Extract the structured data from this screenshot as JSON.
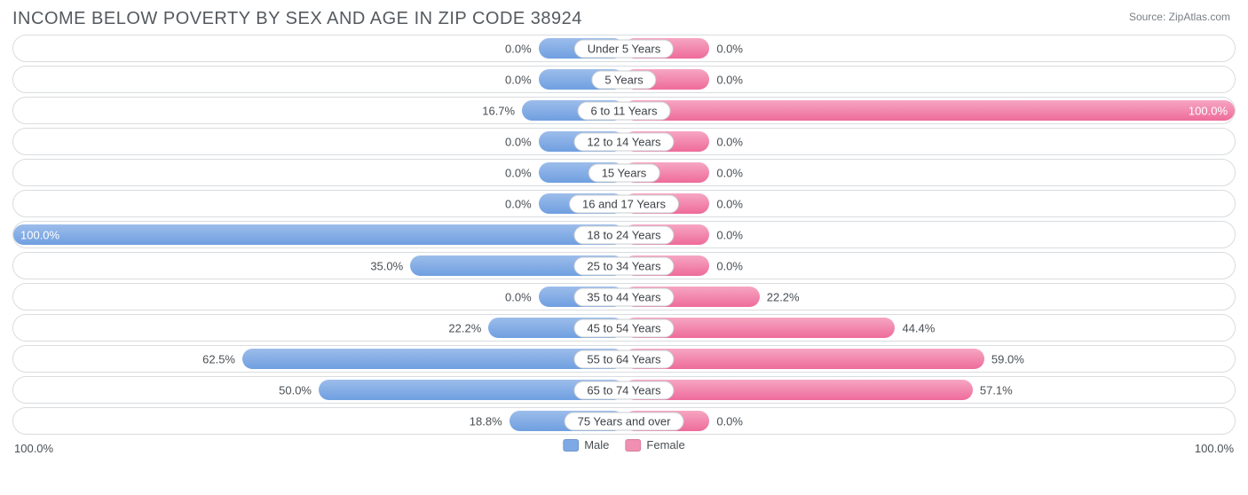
{
  "title": "INCOME BELOW POVERTY BY SEX AND AGE IN ZIP CODE 38924",
  "source": "Source: ZipAtlas.com",
  "axis_left": "100.0%",
  "axis_right": "100.0%",
  "legend": {
    "male": "Male",
    "female": "Female"
  },
  "colors": {
    "male_fill": "linear-gradient(#9cbdeb, #6f9fe0)",
    "male_solid": "#7ea9e4",
    "female_fill": "linear-gradient(#f6a6c2, #ee6b9a)",
    "female_solid": "#f08fb2",
    "track_border": "#d9dcdf",
    "text": "#4a4f54",
    "title_text": "#555a5f",
    "background": "#ffffff"
  },
  "chart": {
    "type": "diverging-bar",
    "min_bar_pct": 14,
    "categories": [
      {
        "label": "Under 5 Years",
        "male": 0.0,
        "female": 0.0
      },
      {
        "label": "5 Years",
        "male": 0.0,
        "female": 0.0
      },
      {
        "label": "6 to 11 Years",
        "male": 16.7,
        "female": 100.0
      },
      {
        "label": "12 to 14 Years",
        "male": 0.0,
        "female": 0.0
      },
      {
        "label": "15 Years",
        "male": 0.0,
        "female": 0.0
      },
      {
        "label": "16 and 17 Years",
        "male": 0.0,
        "female": 0.0
      },
      {
        "label": "18 to 24 Years",
        "male": 100.0,
        "female": 0.0
      },
      {
        "label": "25 to 34 Years",
        "male": 35.0,
        "female": 0.0
      },
      {
        "label": "35 to 44 Years",
        "male": 0.0,
        "female": 22.2
      },
      {
        "label": "45 to 54 Years",
        "male": 22.2,
        "female": 44.4
      },
      {
        "label": "55 to 64 Years",
        "male": 62.5,
        "female": 59.0
      },
      {
        "label": "65 to 74 Years",
        "male": 50.0,
        "female": 57.1
      },
      {
        "label": "75 Years and over",
        "male": 18.8,
        "female": 0.0
      }
    ]
  }
}
